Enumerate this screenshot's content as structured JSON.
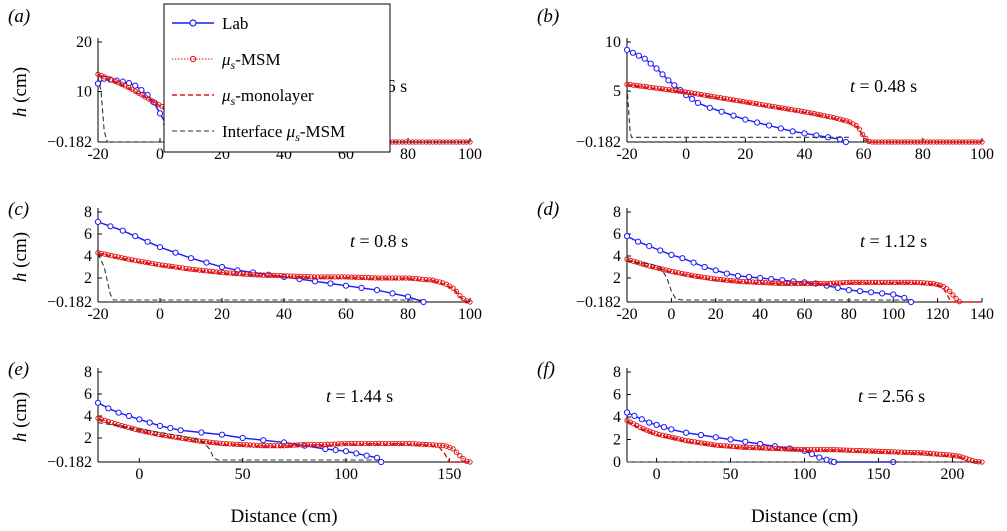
{
  "figure": {
    "legend": {
      "entries": [
        {
          "label": "Lab",
          "color": "#1a1aff",
          "style": "line-circle"
        },
        {
          "label": "μs-MSM",
          "color": "#e01010",
          "style": "dotted-circle"
        },
        {
          "label": "μs-monolayer",
          "color": "#e01010",
          "style": "dashed"
        },
        {
          "label": "Interface μs-MSM",
          "color": "#333333",
          "style": "dashed"
        }
      ]
    }
  },
  "chart_data": [
    {
      "type": "line",
      "panel_label": "(a)",
      "time_label": "t = 0.16 s",
      "ylabel": "h (cm)",
      "xlabel": "",
      "xlim": [
        -20,
        100
      ],
      "ylim": [
        -0.182,
        20
      ],
      "xticks": [
        -20,
        0,
        20,
        40,
        60,
        80,
        100
      ],
      "yticks": [
        -0.182,
        10,
        20
      ],
      "ytick_labels": [
        "−0.182",
        "10",
        "20"
      ],
      "series": [
        {
          "name": "Lab",
          "x": [
            -20,
            -18,
            -16,
            -14,
            -12,
            -10,
            -8,
            -6,
            -4,
            -2,
            0,
            2,
            4,
            6,
            8,
            10
          ],
          "y": [
            11.6,
            12.6,
            12.4,
            12.2,
            12.0,
            11.7,
            11.2,
            10.3,
            9.3,
            7.8,
            5.6,
            3.4,
            1.8,
            0.8,
            0.2,
            -0.182
          ]
        },
        {
          "name": "μs-MSM",
          "x": [
            -20,
            -15,
            -10,
            -5,
            0,
            5,
            10,
            15,
            18,
            20,
            22,
            25,
            40,
            60,
            80,
            100
          ],
          "y": [
            13.5,
            12.2,
            10.8,
            9.0,
            7.2,
            5.6,
            4.4,
            3.2,
            2.4,
            1.2,
            0.0,
            -0.182,
            -0.182,
            -0.182,
            -0.182,
            -0.182
          ]
        },
        {
          "name": "μs-monolayer",
          "x": [
            -20,
            -15,
            -10,
            -5,
            0,
            5,
            10,
            15,
            20,
            22,
            25,
            100
          ],
          "y": [
            13.3,
            12.0,
            10.6,
            8.9,
            7.1,
            5.5,
            4.3,
            3.1,
            1.6,
            0.1,
            -0.182,
            -0.182
          ]
        },
        {
          "name": "Interface μs-MSM",
          "x": [
            -20,
            -19,
            -18,
            -17,
            100
          ],
          "y": [
            13.0,
            10.0,
            2.0,
            -0.182,
            -0.182
          ]
        }
      ]
    },
    {
      "type": "line",
      "panel_label": "(b)",
      "time_label": "t = 0.48 s",
      "ylabel": "",
      "xlabel": "",
      "xlim": [
        -20,
        100
      ],
      "ylim": [
        -0.182,
        10
      ],
      "xticks": [
        -20,
        0,
        20,
        40,
        60,
        80,
        100
      ],
      "yticks": [
        -0.182,
        5,
        10
      ],
      "ytick_labels": [
        "−0.182",
        "5",
        "10"
      ],
      "series": [
        {
          "name": "Lab",
          "x": [
            -20,
            -18,
            -16,
            -14,
            -12,
            -10,
            -8,
            -6,
            -4,
            -2,
            0,
            2,
            4,
            8,
            12,
            16,
            20,
            24,
            28,
            32,
            36,
            40,
            44,
            48,
            52,
            54
          ],
          "y": [
            9.2,
            8.9,
            8.6,
            8.3,
            7.8,
            7.3,
            6.7,
            6.1,
            5.6,
            5.1,
            4.6,
            4.2,
            3.8,
            3.3,
            2.9,
            2.5,
            2.1,
            1.8,
            1.5,
            1.2,
            0.9,
            0.7,
            0.5,
            0.3,
            0.1,
            -0.182
          ]
        },
        {
          "name": "μs-MSM",
          "x": [
            -20,
            -10,
            0,
            10,
            20,
            30,
            40,
            50,
            55,
            58,
            60,
            62,
            100
          ],
          "y": [
            5.7,
            5.3,
            4.9,
            4.4,
            3.9,
            3.4,
            2.9,
            2.3,
            1.9,
            1.4,
            0.4,
            -0.182,
            -0.182
          ]
        },
        {
          "name": "μs-monolayer",
          "x": [
            -20,
            -10,
            0,
            10,
            20,
            30,
            40,
            50,
            55,
            58,
            60,
            62,
            100
          ],
          "y": [
            5.6,
            5.2,
            4.8,
            4.3,
            3.8,
            3.3,
            2.8,
            2.2,
            1.8,
            1.3,
            0.3,
            -0.182,
            -0.182
          ]
        },
        {
          "name": "Interface μs-MSM",
          "x": [
            -20,
            -19,
            -18.5,
            55
          ],
          "y": [
            5.5,
            1.0,
            0.3,
            0.3
          ]
        }
      ]
    },
    {
      "type": "line",
      "panel_label": "(c)",
      "time_label": "t = 0.8 s",
      "ylabel": "h (cm)",
      "xlabel": "",
      "xlim": [
        -20,
        100
      ],
      "ylim": [
        -0.182,
        8
      ],
      "xticks": [
        -20,
        0,
        20,
        40,
        60,
        80,
        100
      ],
      "yticks": [
        -0.182,
        2,
        4,
        6,
        8
      ],
      "ytick_labels": [
        "−0.182",
        "2",
        "4",
        "6",
        "8"
      ],
      "series": [
        {
          "name": "Lab",
          "x": [
            -20,
            -16,
            -12,
            -8,
            -4,
            0,
            5,
            10,
            15,
            20,
            25,
            30,
            35,
            40,
            45,
            50,
            55,
            60,
            65,
            70,
            75,
            80,
            85
          ],
          "y": [
            7.1,
            6.7,
            6.3,
            5.8,
            5.3,
            4.8,
            4.3,
            3.8,
            3.4,
            3.0,
            2.7,
            2.5,
            2.3,
            2.1,
            1.9,
            1.7,
            1.5,
            1.3,
            1.1,
            0.9,
            0.6,
            0.3,
            -0.182
          ]
        },
        {
          "name": "μs-MSM",
          "x": [
            -20,
            -10,
            0,
            10,
            20,
            30,
            40,
            50,
            60,
            70,
            80,
            88,
            92,
            95,
            97,
            99,
            100
          ],
          "y": [
            4.3,
            3.7,
            3.2,
            2.8,
            2.5,
            2.3,
            2.2,
            2.1,
            2.1,
            2.0,
            2.0,
            1.8,
            1.5,
            1.0,
            0.3,
            -0.1,
            -0.182
          ]
        },
        {
          "name": "μs-monolayer",
          "x": [
            -20,
            -10,
            0,
            10,
            20,
            30,
            40,
            50,
            60,
            70,
            80,
            88,
            92,
            95,
            97,
            99,
            100
          ],
          "y": [
            4.2,
            3.6,
            3.1,
            2.7,
            2.4,
            2.2,
            2.1,
            2.0,
            2.0,
            1.9,
            1.9,
            1.7,
            1.4,
            0.9,
            0.2,
            -0.1,
            -0.182
          ]
        },
        {
          "name": "Interface μs-MSM",
          "x": [
            -20,
            -18,
            -16,
            -15,
            85
          ],
          "y": [
            4.2,
            3.0,
            0.5,
            0.0,
            0.0
          ]
        }
      ]
    },
    {
      "type": "line",
      "panel_label": "(d)",
      "time_label": "t = 1.12 s",
      "ylabel": "",
      "xlabel": "",
      "xlim": [
        -20,
        140
      ],
      "ylim": [
        -0.182,
        8
      ],
      "xticks": [
        -20,
        0,
        20,
        40,
        60,
        80,
        100,
        120,
        140
      ],
      "yticks": [
        -0.182,
        2,
        4,
        6,
        8
      ],
      "ytick_labels": [
        "−0.182",
        "2",
        "4",
        "6",
        "8"
      ],
      "series": [
        {
          "name": "Lab",
          "x": [
            -20,
            -15,
            -10,
            -5,
            0,
            5,
            10,
            15,
            20,
            25,
            30,
            35,
            40,
            45,
            50,
            55,
            60,
            65,
            70,
            75,
            80,
            85,
            90,
            95,
            100,
            105,
            108
          ],
          "y": [
            5.8,
            5.3,
            4.9,
            4.5,
            4.1,
            3.8,
            3.4,
            3.0,
            2.7,
            2.4,
            2.2,
            2.1,
            2.0,
            1.9,
            1.8,
            1.7,
            1.6,
            1.5,
            1.3,
            1.1,
            0.9,
            0.8,
            0.7,
            0.6,
            0.5,
            0.2,
            -0.182
          ]
        },
        {
          "name": "μs-MSM",
          "x": [
            -20,
            -10,
            0,
            10,
            20,
            30,
            40,
            50,
            60,
            70,
            80,
            90,
            100,
            110,
            118,
            122,
            125,
            128,
            130
          ],
          "y": [
            3.7,
            3.1,
            2.6,
            2.2,
            1.9,
            1.7,
            1.6,
            1.5,
            1.5,
            1.5,
            1.6,
            1.6,
            1.6,
            1.6,
            1.5,
            1.3,
            0.9,
            0.2,
            -0.182
          ]
        },
        {
          "name": "μs-monolayer",
          "x": [
            -20,
            -10,
            0,
            10,
            20,
            30,
            40,
            50,
            60,
            70,
            80,
            90,
            100,
            110,
            118,
            122,
            124,
            126,
            140
          ],
          "y": [
            3.6,
            3.0,
            2.5,
            2.1,
            1.8,
            1.6,
            1.5,
            1.4,
            1.4,
            1.4,
            1.5,
            1.5,
            1.5,
            1.5,
            1.4,
            1.2,
            0.6,
            -0.182,
            -0.182
          ]
        },
        {
          "name": "Interface μs-MSM",
          "x": [
            -20,
            -10,
            -5,
            -2,
            0,
            2,
            5,
            108
          ],
          "y": [
            3.5,
            3.3,
            3.0,
            2.0,
            0.8,
            0.1,
            0.0,
            0.0
          ]
        }
      ]
    },
    {
      "type": "line",
      "panel_label": "(e)",
      "time_label": "t = 1.44 s",
      "ylabel": "h (cm)",
      "xlabel": "Distance (cm)",
      "xlim": [
        -20,
        160
      ],
      "ylim": [
        -0.182,
        8
      ],
      "xticks": [
        0,
        50,
        100,
        150
      ],
      "yticks": [
        -0.182,
        2,
        4,
        6,
        8
      ],
      "ytick_labels": [
        "−0.182",
        "2",
        "4",
        "6",
        "8"
      ],
      "series": [
        {
          "name": "Lab",
          "x": [
            -20,
            -15,
            -10,
            -5,
            0,
            5,
            10,
            15,
            20,
            30,
            40,
            50,
            60,
            70,
            80,
            90,
            95,
            100,
            105,
            110,
            115,
            117
          ],
          "y": [
            5.2,
            4.7,
            4.3,
            4.0,
            3.7,
            3.4,
            3.1,
            2.9,
            2.7,
            2.5,
            2.3,
            2.0,
            1.8,
            1.6,
            1.3,
            1.0,
            0.9,
            0.8,
            0.6,
            0.4,
            0.2,
            -0.182
          ]
        },
        {
          "name": "μs-MSM",
          "x": [
            -20,
            -10,
            0,
            10,
            20,
            30,
            40,
            50,
            60,
            70,
            80,
            90,
            100,
            110,
            120,
            130,
            140,
            148,
            152,
            155,
            158,
            160
          ],
          "y": [
            3.8,
            3.2,
            2.7,
            2.3,
            2.0,
            1.7,
            1.5,
            1.4,
            1.3,
            1.3,
            1.4,
            1.4,
            1.5,
            1.5,
            1.5,
            1.5,
            1.4,
            1.3,
            1.0,
            0.4,
            -0.1,
            -0.182
          ]
        },
        {
          "name": "μs-monolayer",
          "x": [
            -20,
            -10,
            0,
            10,
            20,
            30,
            40,
            50,
            60,
            70,
            80,
            90,
            100,
            110,
            120,
            130,
            140,
            145,
            148,
            150,
            160
          ],
          "y": [
            3.7,
            3.1,
            2.6,
            2.2,
            1.9,
            1.6,
            1.4,
            1.3,
            1.2,
            1.2,
            1.3,
            1.3,
            1.4,
            1.4,
            1.4,
            1.4,
            1.3,
            1.2,
            0.5,
            -0.182,
            -0.182
          ]
        },
        {
          "name": "Interface μs-MSM",
          "x": [
            -20,
            0,
            20,
            30,
            34,
            36,
            38,
            117
          ],
          "y": [
            3.4,
            2.8,
            2.2,
            1.8,
            1.0,
            0.2,
            0.0,
            0.0
          ]
        }
      ]
    },
    {
      "type": "line",
      "panel_label": "(f)",
      "time_label": "t = 2.56 s",
      "ylabel": "",
      "xlabel": "Distance (cm)",
      "xlim": [
        -20,
        220
      ],
      "ylim": [
        0,
        8
      ],
      "xticks": [
        0,
        50,
        100,
        150,
        200
      ],
      "yticks": [
        0,
        2,
        4,
        6,
        8
      ],
      "ytick_labels": [
        "0",
        "2",
        "4",
        "6",
        "8"
      ],
      "series": [
        {
          "name": "Lab",
          "x": [
            -20,
            -15,
            -10,
            -5,
            0,
            5,
            10,
            20,
            30,
            40,
            50,
            60,
            70,
            80,
            90,
            100,
            105,
            110,
            115,
            118,
            120,
            160
          ],
          "y": [
            4.4,
            4.1,
            3.8,
            3.5,
            3.3,
            3.1,
            2.9,
            2.6,
            2.4,
            2.2,
            2.0,
            1.8,
            1.6,
            1.4,
            1.2,
            1.0,
            0.7,
            0.4,
            0.2,
            0.05,
            0.0,
            0.0
          ]
        },
        {
          "name": "μs-MSM",
          "x": [
            -20,
            -10,
            0,
            20,
            40,
            60,
            80,
            100,
            120,
            140,
            160,
            180,
            200,
            205,
            210,
            215,
            220
          ],
          "y": [
            3.7,
            3.0,
            2.5,
            1.9,
            1.5,
            1.3,
            1.2,
            1.1,
            1.1,
            1.0,
            0.9,
            0.8,
            0.6,
            0.5,
            0.3,
            0.05,
            0.0
          ]
        },
        {
          "name": "μs-monolayer",
          "x": [
            -20,
            -10,
            0,
            20,
            40,
            60,
            80,
            100,
            120,
            140,
            160,
            180,
            200,
            205,
            210,
            212,
            220
          ],
          "y": [
            3.6,
            2.9,
            2.4,
            1.8,
            1.4,
            1.2,
            1.1,
            1.0,
            1.0,
            0.9,
            0.8,
            0.7,
            0.5,
            0.4,
            0.1,
            0.0,
            0.0
          ]
        },
        {
          "name": "Interface μs-MSM",
          "x": [
            -20,
            220
          ],
          "y": [
            0.0,
            0.0
          ]
        }
      ]
    }
  ]
}
